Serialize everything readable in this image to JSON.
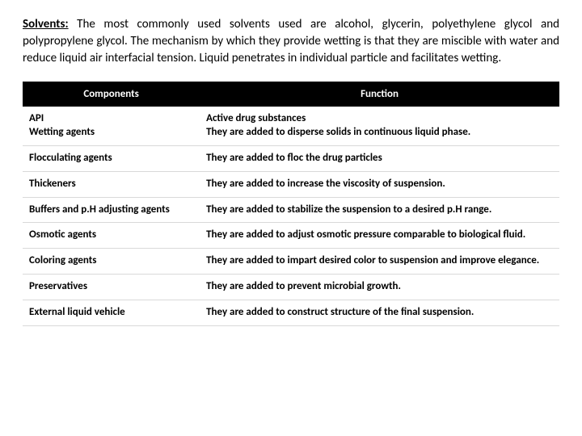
{
  "intro": {
    "label": "Solvents:",
    "text": " The most commonly used solvents used are alcohol, glycerin, polyethylene glycol and polypropylene glycol. The mechanism by which they provide wetting is that they are miscible with water and reduce liquid air interfacial tension. Liquid penetrates in individual particle and facilitates wetting."
  },
  "table": {
    "headers": {
      "col1": "Components",
      "col2": "Function"
    },
    "rows": [
      {
        "component": "API\nWetting agents",
        "function": "Active drug substances\nThey are added to disperse solids in continuous liquid phase."
      },
      {
        "component": "Flocculating agents",
        "function": "They are added to floc the drug particles"
      },
      {
        "component": "Thickeners",
        "function": "They are added to increase the viscosity of suspension."
      },
      {
        "component": "Buffers and p.H adjusting agents",
        "function": "They are added to stabilize the suspension to a desired p.H range."
      },
      {
        "component": "Osmotic agents",
        "function": "They are added to adjust osmotic pressure comparable to biological fluid."
      },
      {
        "component": "Coloring agents",
        "function": "They are added to impart desired color to suspension and improve elegance."
      },
      {
        "component": "Preservatives",
        "function": "They are added to prevent microbial growth."
      },
      {
        "component": "External liquid vehicle",
        "function": "They are added to construct structure of the final suspension."
      }
    ]
  }
}
